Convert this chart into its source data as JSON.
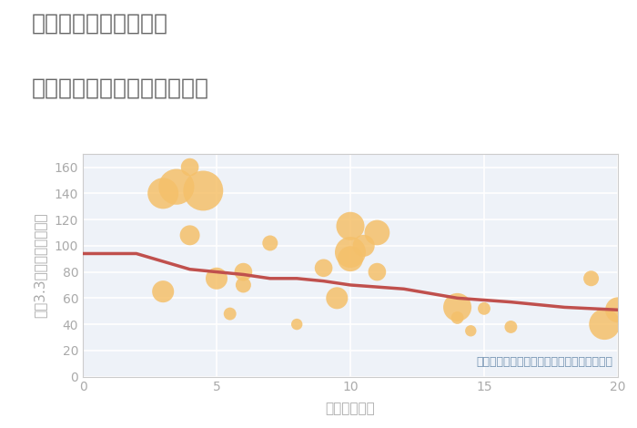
{
  "title_line1": "奈良県奈良市雑司町の",
  "title_line2": "駅距離別中古マンション価格",
  "xlabel": "駅距離（分）",
  "ylabel": "坪（3.3㎡）単価（万円）",
  "annotation": "円の大きさは、取引のあった物件面積を示す",
  "xlim": [
    0,
    20
  ],
  "ylim": [
    0,
    170
  ],
  "yticks": [
    0,
    20,
    40,
    60,
    80,
    100,
    120,
    140,
    160
  ],
  "xticks": [
    0,
    5,
    10,
    15,
    20
  ],
  "scatter_x": [
    3,
    3.5,
    4,
    4.5,
    3,
    4,
    5,
    5.5,
    6,
    6,
    7,
    8,
    9,
    9.5,
    10,
    10,
    10,
    10.5,
    11,
    11,
    14,
    14,
    14.5,
    15,
    16,
    19,
    19.5,
    20
  ],
  "scatter_y": [
    140,
    145,
    160,
    142,
    65,
    108,
    75,
    48,
    70,
    80,
    102,
    40,
    83,
    60,
    115,
    95,
    90,
    100,
    110,
    80,
    45,
    53,
    35,
    52,
    38,
    75,
    40,
    51
  ],
  "scatter_size": [
    600,
    800,
    200,
    1000,
    300,
    250,
    300,
    100,
    150,
    200,
    150,
    80,
    200,
    300,
    500,
    600,
    400,
    300,
    400,
    200,
    100,
    500,
    80,
    100,
    100,
    150,
    600,
    400
  ],
  "scatter_color": "#F5C06A",
  "scatter_alpha": 0.85,
  "trend_x": [
    0,
    2,
    4,
    6,
    7,
    8,
    9,
    10,
    12,
    14,
    16,
    18,
    20
  ],
  "trend_y": [
    94,
    94,
    82,
    78,
    75,
    75,
    73,
    70,
    67,
    60,
    57,
    53,
    51
  ],
  "trend_color": "#C0504D",
  "trend_linewidth": 2.5,
  "background_color": "#FFFFFF",
  "plot_bg_color": "#EEF2F8",
  "grid_color": "#FFFFFF",
  "title_color": "#666666",
  "annotation_color": "#7090B0",
  "axis_color": "#AAAAAA",
  "title_fontsize": 18,
  "label_fontsize": 11,
  "tick_fontsize": 10,
  "annotation_fontsize": 9
}
